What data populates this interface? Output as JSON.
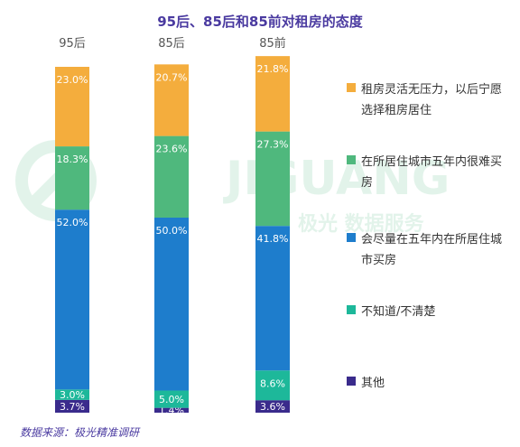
{
  "chart_data": {
    "type": "bar",
    "stacked": true,
    "title": "95后、85后和85前对租房的态度",
    "categories": [
      "95后",
      "85后",
      "85前"
    ],
    "series": [
      {
        "name": "其他",
        "color": "#3a2b8c",
        "values": [
          3.7,
          1.4,
          3.6
        ],
        "labels": [
          "3.7%",
          "1.4%",
          "3.6%"
        ]
      },
      {
        "name": "不知道/不清楚",
        "color": "#1db89a",
        "values": [
          3.0,
          5.0,
          8.6
        ],
        "labels": [
          "3.0%",
          "5.0%",
          "8.6%"
        ]
      },
      {
        "name": "会尽量在五年内在所居住城市买房",
        "color": "#1e7dcc",
        "values": [
          52.0,
          50.0,
          41.8
        ],
        "labels": [
          "52.0%",
          "50.0%",
          "41.8%"
        ]
      },
      {
        "name": "在所居住城市五年内很难买房",
        "color": "#4fb87d",
        "values": [
          18.3,
          23.6,
          27.3
        ],
        "labels": [
          "18.3%",
          "23.6%",
          "27.3%"
        ]
      },
      {
        "name": "租房灵活无压力，以后宁愿选择租房居住",
        "color": "#f4ad3d",
        "values": [
          23.0,
          20.7,
          21.8
        ],
        "labels": [
          "23.0%",
          "20.7%",
          "21.8%"
        ]
      }
    ],
    "ylim": [
      0,
      100
    ],
    "legend_position": "right"
  },
  "legend": [
    {
      "label": "租房灵活无压力，以后宁愿选择租房居住",
      "color": "#f4ad3d"
    },
    {
      "label": "在所居住城市五年内很难买房",
      "color": "#4fb87d"
    },
    {
      "label": "会尽量在五年内在所居住城市买房",
      "color": "#1e7dcc"
    },
    {
      "label": "不知道/不清楚",
      "color": "#1db89a"
    },
    {
      "label": "其他",
      "color": "#3a2b8c"
    }
  ],
  "source": "数据来源：极光精准调研",
  "watermark": {
    "text_en": "JIGUANG",
    "text_cn": "极光 数据服务"
  }
}
